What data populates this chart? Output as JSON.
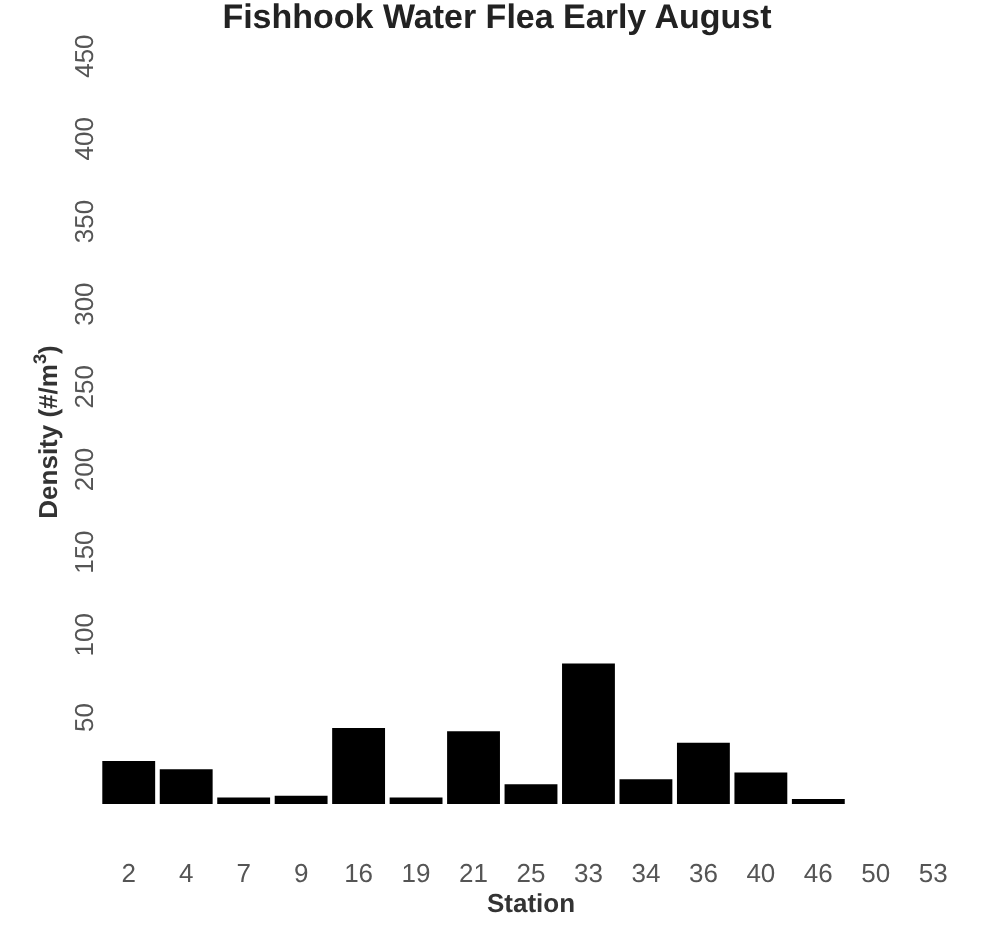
{
  "chart_data": {
    "type": "bar",
    "title": "Fishhook Water Flea Early August",
    "xlabel": "Station",
    "ylabel": "Density (#/m$^{3}$)",
    "categories": [
      "2",
      "4",
      "7",
      "9",
      "16",
      "19",
      "21",
      "25",
      "33",
      "34",
      "36",
      "40",
      "46",
      "50",
      "53"
    ],
    "values": [
      26,
      21,
      4,
      5,
      46,
      4,
      44,
      12,
      85,
      15,
      37,
      19,
      3,
      0,
      0
    ],
    "color": "#000000",
    "ylim": [
      0,
      450
    ],
    "yticks": [
      50,
      100,
      150,
      200,
      250,
      300,
      350,
      400,
      450
    ]
  }
}
